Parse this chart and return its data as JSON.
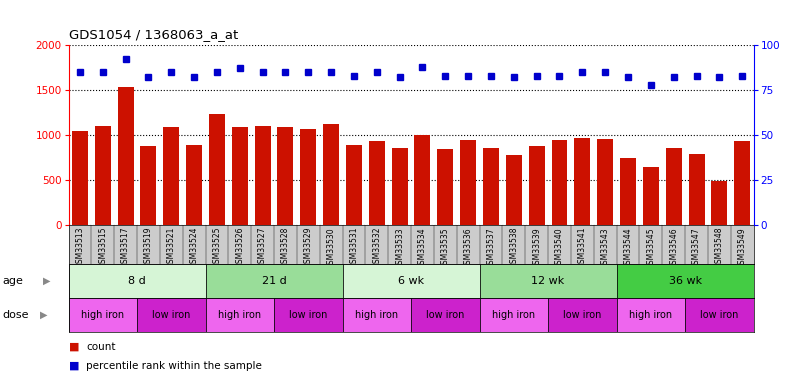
{
  "title": "GDS1054 / 1368063_a_at",
  "samples": [
    "GSM33513",
    "GSM33515",
    "GSM33517",
    "GSM33519",
    "GSM33521",
    "GSM33524",
    "GSM33525",
    "GSM33526",
    "GSM33527",
    "GSM33528",
    "GSM33529",
    "GSM33530",
    "GSM33531",
    "GSM33532",
    "GSM33533",
    "GSM33534",
    "GSM33535",
    "GSM33536",
    "GSM33537",
    "GSM33538",
    "GSM33539",
    "GSM33540",
    "GSM33541",
    "GSM33543",
    "GSM33544",
    "GSM33545",
    "GSM33546",
    "GSM33547",
    "GSM33548",
    "GSM33549"
  ],
  "counts": [
    1050,
    1100,
    1530,
    880,
    1090,
    890,
    1230,
    1090,
    1100,
    1090,
    1070,
    1120,
    890,
    930,
    860,
    1000,
    840,
    940,
    860,
    780,
    880,
    950,
    970,
    960,
    740,
    650,
    860,
    790,
    490,
    930
  ],
  "percentiles": [
    85,
    85,
    92,
    82,
    85,
    82,
    85,
    87,
    85,
    85,
    85,
    85,
    83,
    85,
    82,
    88,
    83,
    83,
    83,
    82,
    83,
    83,
    85,
    85,
    82,
    78,
    82,
    83,
    82,
    83
  ],
  "age_groups": [
    {
      "label": "8 d",
      "start": 0,
      "end": 6,
      "color": "#d6f5d6"
    },
    {
      "label": "21 d",
      "start": 6,
      "end": 12,
      "color": "#99dd99"
    },
    {
      "label": "6 wk",
      "start": 12,
      "end": 18,
      "color": "#d6f5d6"
    },
    {
      "label": "12 wk",
      "start": 18,
      "end": 24,
      "color": "#99dd99"
    },
    {
      "label": "36 wk",
      "start": 24,
      "end": 30,
      "color": "#44cc44"
    }
  ],
  "dose_groups": [
    {
      "label": "high iron",
      "start": 0,
      "end": 3,
      "color": "#ee66ee"
    },
    {
      "label": "low iron",
      "start": 3,
      "end": 6,
      "color": "#cc22cc"
    },
    {
      "label": "high iron",
      "start": 6,
      "end": 9,
      "color": "#ee66ee"
    },
    {
      "label": "low iron",
      "start": 9,
      "end": 12,
      "color": "#cc22cc"
    },
    {
      "label": "high iron",
      "start": 12,
      "end": 15,
      "color": "#ee66ee"
    },
    {
      "label": "low iron",
      "start": 15,
      "end": 18,
      "color": "#cc22cc"
    },
    {
      "label": "high iron",
      "start": 18,
      "end": 21,
      "color": "#ee66ee"
    },
    {
      "label": "low iron",
      "start": 21,
      "end": 24,
      "color": "#cc22cc"
    },
    {
      "label": "high iron",
      "start": 24,
      "end": 27,
      "color": "#ee66ee"
    },
    {
      "label": "low iron",
      "start": 27,
      "end": 30,
      "color": "#cc22cc"
    }
  ],
  "bar_color": "#cc1100",
  "dot_color": "#0000cc",
  "ylim_left": [
    0,
    2000
  ],
  "ylim_right": [
    0,
    100
  ],
  "yticks_left": [
    0,
    500,
    1000,
    1500,
    2000
  ],
  "yticks_right": [
    0,
    25,
    50,
    75,
    100
  ],
  "background_color": "#ffffff",
  "xtick_bg": "#cccccc"
}
